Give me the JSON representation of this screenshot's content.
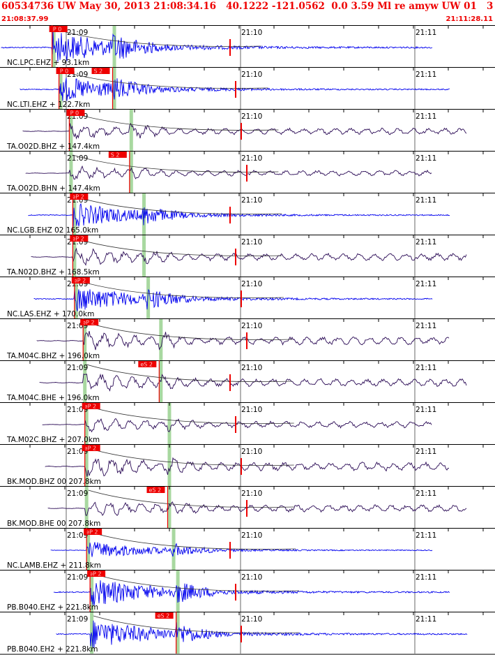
{
  "header": {
    "title": "60534736 UW May 30, 2013 21:08:34.16   40.1222 -121.0562  0.0 3.59 Ml re amyw UW 01   3",
    "start_time": "21:08:37.99",
    "end_time": "21:11:28.11"
  },
  "time_labels": [
    "21:09",
    "21:10",
    "21:11"
  ],
  "colors": {
    "accent": "#ee0000",
    "trace_blue": "#0000ee",
    "trace_purple": "#2a0a55",
    "pick_band": "#a8d8a0",
    "fit_curve": "#333333"
  },
  "traces": [
    {
      "label": "NC.LPC.EHZ + 93.1km",
      "color": "blue",
      "p_label": "iP 0",
      "s_label": "",
      "p_t": 0.07,
      "s_t": 0.2,
      "amp": 1.0,
      "style": "hf"
    },
    {
      "label": "NC.LTI.EHZ + 122.7km",
      "color": "blue",
      "p_label": "iP 0",
      "s_label": "S 2",
      "p_t": 0.09,
      "s_t": 0.2,
      "amp": 0.8,
      "style": "hf"
    },
    {
      "label": "TA.O02D.BHZ + 147.4km",
      "color": "purple",
      "p_label": "iP 0",
      "s_label": "",
      "p_t": 0.12,
      "s_t": 0.24,
      "amp": 0.45,
      "style": "lf"
    },
    {
      "label": "TA.O02D.BHN + 147.4km",
      "color": "purple",
      "p_label": "",
      "s_label": "S 2",
      "p_t": 0.12,
      "s_t": 0.24,
      "amp": 0.4,
      "style": "lf"
    },
    {
      "label": "NC.LGB.EHZ 02 165.0km",
      "color": "blue",
      "p_label": "eP 2",
      "s_label": "",
      "p_t": 0.13,
      "s_t": 0.27,
      "amp": 0.75,
      "style": "hf"
    },
    {
      "label": "TA.N02D.BHZ + 168.5km",
      "color": "purple",
      "p_label": "eP 2",
      "s_label": "",
      "p_t": 0.13,
      "s_t": 0.27,
      "amp": 0.5,
      "style": "lf"
    },
    {
      "label": "NC.LAS.EHZ + 170.0km",
      "color": "blue",
      "p_label": "eP 2",
      "s_label": "",
      "p_t": 0.135,
      "s_t": 0.28,
      "amp": 0.8,
      "style": "hf"
    },
    {
      "label": "TA.M04C.BHZ + 196.0km",
      "color": "purple",
      "p_label": "eP 2",
      "s_label": "",
      "p_t": 0.16,
      "s_t": 0.31,
      "amp": 0.55,
      "style": "lf"
    },
    {
      "label": "TA.M04C.BHE + 196.0km",
      "color": "purple",
      "p_label": "",
      "s_label": "eS 2",
      "p_t": 0.16,
      "s_t": 0.31,
      "amp": 0.55,
      "style": "lf"
    },
    {
      "label": "TA.M02C.BHZ + 207.0km",
      "color": "purple",
      "p_label": "eP 2",
      "s_label": "",
      "p_t": 0.165,
      "s_t": 0.33,
      "amp": 0.45,
      "style": "lf"
    },
    {
      "label": "BK.MOD.BHZ 00 207.8km",
      "color": "purple",
      "p_label": "eP 2",
      "s_label": "",
      "p_t": 0.165,
      "s_t": 0.33,
      "amp": 0.6,
      "style": "lf"
    },
    {
      "label": "BK.MOD.BHE 00 207.8km",
      "color": "purple",
      "p_label": "",
      "s_label": "eS 2",
      "p_t": 0.165,
      "s_t": 0.33,
      "amp": 0.5,
      "style": "lf"
    },
    {
      "label": "NC.LAMB.EHZ + 211.8km",
      "color": "blue",
      "p_label": "eP 2",
      "s_label": "",
      "p_t": 0.17,
      "s_t": 0.34,
      "amp": 0.55,
      "style": "hf"
    },
    {
      "label": "PB.B040.EHZ + 221.8km",
      "color": "blue",
      "p_label": "eP 2",
      "s_label": "",
      "p_t": 0.18,
      "s_t": 0.35,
      "amp": 0.9,
      "style": "hf"
    },
    {
      "label": "PB.B040.EH2 + 221.8km",
      "color": "blue",
      "p_label": "",
      "s_label": "eS 2",
      "p_t": 0.18,
      "s_t": 0.35,
      "amp": 0.9,
      "style": "hf"
    }
  ]
}
